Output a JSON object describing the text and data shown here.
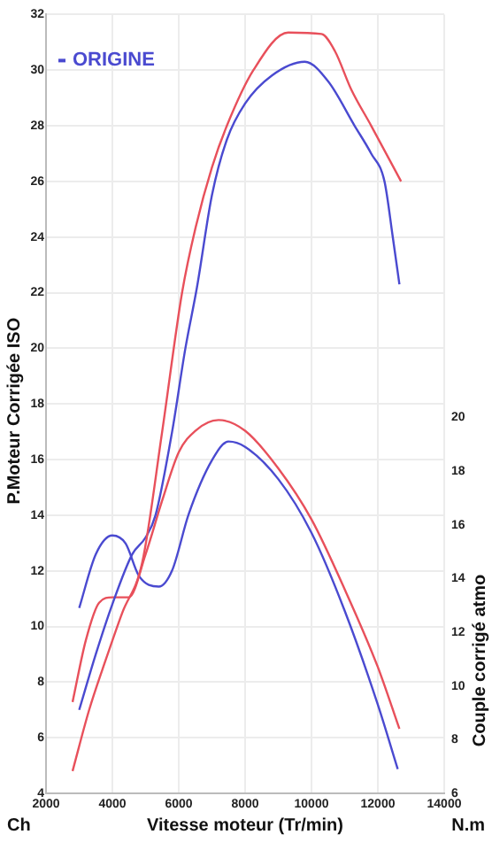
{
  "chart_data": {
    "type": "line",
    "xlabel": "Vitesse moteur (Tr/min)",
    "ylabel": "P.Moteur Corrigée ISO",
    "y2label": "Couple corrigé atmo",
    "annotations": [
      "Ch",
      "N.m"
    ],
    "xlim": [
      2000,
      14000
    ],
    "xticks": [
      2000,
      4000,
      6000,
      8000,
      10000,
      12000,
      14000
    ],
    "ylim": [
      4,
      32
    ],
    "yticks": [
      4,
      6,
      8,
      10,
      12,
      14,
      16,
      18,
      20,
      22,
      24,
      26,
      28,
      30,
      32
    ],
    "y2lim": [
      6,
      35
    ],
    "y2ticks": [
      6,
      8,
      10,
      12,
      14,
      16,
      18,
      20
    ],
    "grid": true,
    "legend": "top left",
    "marker": "none",
    "series": [
      {
        "color": "#e8505b",
        "x": [
          2800,
          3300,
          3800,
          4300,
          4900,
          5500,
          6100,
          6500,
          7000,
          7450,
          8250,
          9300,
          10300,
          10700,
          11200,
          11800,
          12700
        ],
        "values": [
          4.8,
          7,
          8.8,
          10.5,
          12.3,
          17,
          22,
          24.3,
          26.5,
          28,
          30,
          31.35,
          31.3,
          30.7,
          29.3,
          28,
          26
        ]
      },
      {
        "name": "ORIGINE",
        "color": "#4a4ad0",
        "x": [
          3000,
          3500,
          4000,
          4600,
          5000,
          5300,
          5800,
          6200,
          6550,
          7000,
          7450,
          8000,
          8800,
          9800,
          10500,
          11300,
          11800,
          12200,
          12450,
          12650
        ],
        "values": [
          7,
          9,
          10.8,
          12.6,
          13.2,
          14,
          17,
          20,
          22.2,
          25.5,
          27.5,
          28.8,
          29.8,
          30.3,
          29.6,
          28,
          27,
          26,
          24,
          22.3
        ]
      },
      {
        "color": "#e8505b",
        "axis": "y2",
        "x": [
          2800,
          3200,
          3600,
          4000,
          4500,
          5000,
          5500,
          6000,
          6500,
          7200,
          8000,
          9000,
          10000,
          11000,
          12000,
          12650
        ],
        "values": [
          9.4,
          11.7,
          13.1,
          13.3,
          13.3,
          14.9,
          16.9,
          18.7,
          19.5,
          19.9,
          19.5,
          18.1,
          16.2,
          13.6,
          10.7,
          8.4
        ]
      },
      {
        "color": "#4a4ad0",
        "axis": "y2",
        "x": [
          3000,
          3500,
          4000,
          4400,
          4800,
          5400,
          5800,
          6300,
          7000,
          7500,
          8000,
          9000,
          10000,
          11000,
          12000,
          12600
        ],
        "values": [
          12.9,
          14.9,
          15.6,
          15.3,
          14.1,
          13.7,
          14.3,
          16.4,
          18.4,
          19.1,
          18.9,
          17.7,
          15.7,
          12.8,
          9.3,
          6.9
        ]
      }
    ]
  }
}
